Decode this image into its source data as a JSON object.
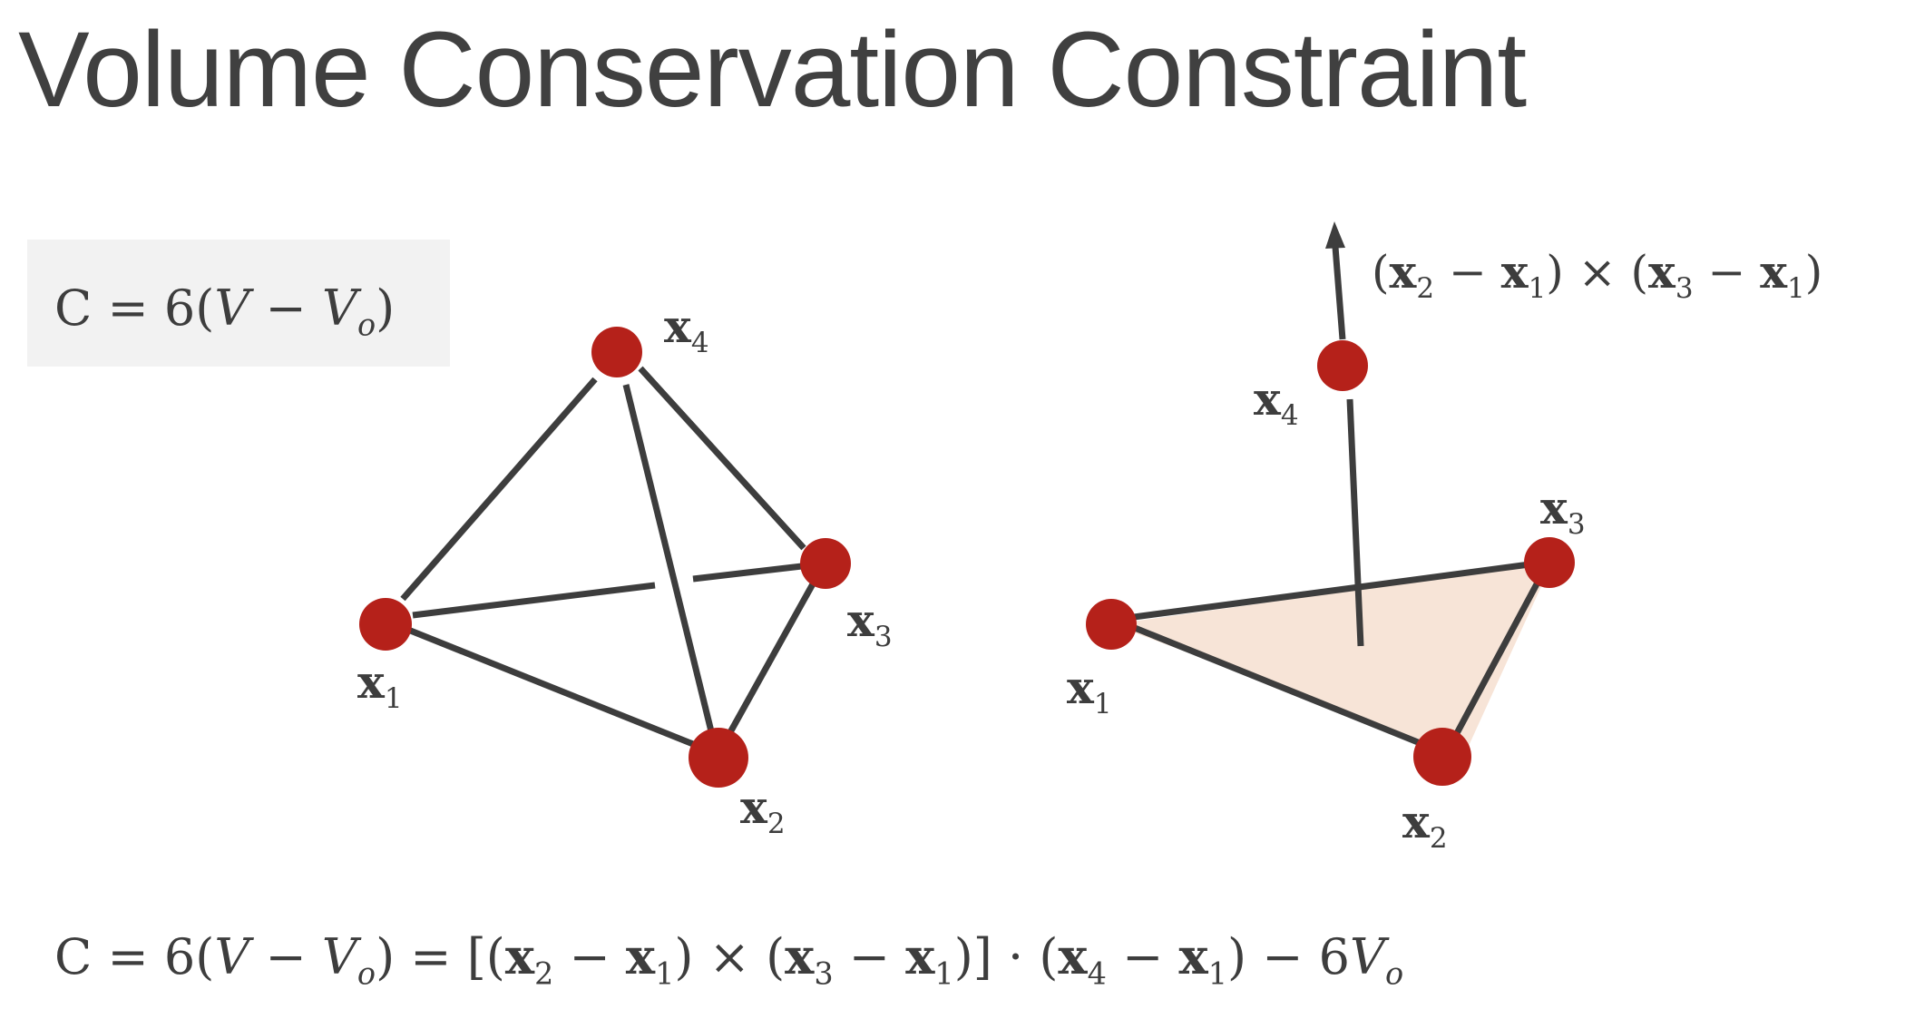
{
  "title": "Volume Conservation Constraint",
  "box_formula": {
    "c": "C",
    "eq": "=",
    "six": "6(",
    "v": "V",
    "minus": "−",
    "v0": "V",
    "v0_sub": "o",
    "close": ")"
  },
  "bottom_formula": {
    "lhs": "C = 6(",
    "v": "V",
    "minus": " − ",
    "v0": "V",
    "v0_sub": "o",
    "eq_bracket": ") = [(",
    "x2": "x",
    "x2_sub": "2",
    "m1": " − ",
    "x1a": "x",
    "x1a_sub": "1",
    "cross": ") × (",
    "x3": "x",
    "x3_sub": "3",
    "m2": " − ",
    "x1b": "x",
    "x1b_sub": "1",
    "dot": ")] · (",
    "x4": "x",
    "x4_sub": "4",
    "m3": " − ",
    "x1c": "x",
    "x1c_sub": "1",
    "tail": ")  − 6",
    "v0b": "V",
    "v0b_sub": "o"
  },
  "normal_label": {
    "open1": "(",
    "x2": "x",
    "x2_sub": "2",
    "m1": " − ",
    "x1a": "x",
    "x1a_sub": "1",
    "cross": ") × (",
    "x3": "x",
    "x3_sub": "3",
    "m2": " − ",
    "x1b": "x",
    "x1b_sub": "1",
    "close": ")"
  },
  "left_vertices": [
    {
      "name": "x",
      "sub": "1"
    },
    {
      "name": "x",
      "sub": "2"
    },
    {
      "name": "x",
      "sub": "3"
    },
    {
      "name": "x",
      "sub": "4"
    }
  ],
  "right_vertices": [
    {
      "name": "x",
      "sub": "1"
    },
    {
      "name": "x",
      "sub": "2"
    },
    {
      "name": "x",
      "sub": "3"
    },
    {
      "name": "x",
      "sub": "4"
    }
  ],
  "colors": {
    "vertex": "#b5211a",
    "edge": "#3d3d3d",
    "face_fill": "#f7e4d7",
    "formula_box": "#f2f2f2"
  }
}
